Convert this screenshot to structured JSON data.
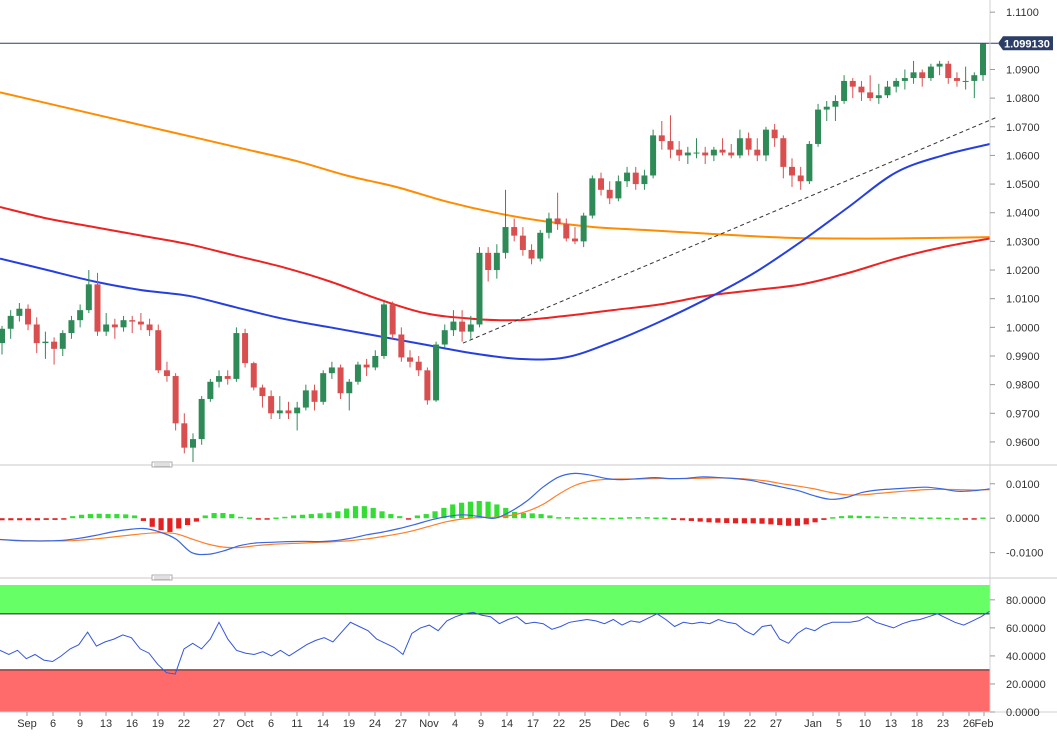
{
  "colors": {
    "bull": "#2e8b57",
    "bear": "#d94f4f",
    "sma_fast": "#2640e0",
    "sma_mid": "#ee2222",
    "sma_slow": "#ff8c00",
    "trendline": "#333333",
    "price_line": "#2c3e66",
    "macd": "#3a66e0",
    "signal": "#ff7f27",
    "hist_pos": "#33dd33",
    "hist_neg": "#e42020",
    "rsi_line": "#3355dd",
    "overbought": "#66ff66",
    "oversold": "#ff6b6b"
  },
  "chart_data": [
    {
      "type": "candlestick",
      "panel": "price",
      "title": "",
      "ylim": [
        0.953,
        1.1125
      ],
      "yticks": [
        "1.1100",
        "1.0900",
        "1.0800",
        "1.0700",
        "1.0600",
        "1.0500",
        "1.0400",
        "1.0300",
        "1.0200",
        "1.0100",
        "1.0000",
        "0.9900",
        "0.9800",
        "0.9700",
        "0.9600"
      ],
      "ytick_values": [
        1.11,
        1.09,
        1.08,
        1.07,
        1.06,
        1.05,
        1.04,
        1.03,
        1.02,
        1.01,
        1.0,
        0.99,
        0.98,
        0.97,
        0.96
      ],
      "last_price_label": "1.099130",
      "last_price": 1.09913,
      "xticks": [
        "Sep",
        "6",
        "9",
        "13",
        "16",
        "19",
        "22",
        "27",
        "Oct",
        "6",
        "11",
        "14",
        "19",
        "24",
        "27",
        "Nov",
        "4",
        "9",
        "14",
        "17",
        "22",
        "25",
        "Dec",
        "6",
        "9",
        "14",
        "19",
        "22",
        "27",
        "Jan",
        "5",
        "10",
        "13",
        "18",
        "23",
        "26",
        "Feb"
      ],
      "candles_ohlc": [
        [
          0.9945,
          1.0005,
          0.9905,
          0.9995
        ],
        [
          0.9995,
          1.006,
          0.996,
          1.004
        ],
        [
          1.004,
          1.0085,
          1.002,
          1.0065
        ],
        [
          1.0065,
          1.008,
          0.999,
          1.001
        ],
        [
          1.001,
          1.0035,
          0.991,
          0.9945
        ],
        [
          0.9945,
          0.9985,
          0.989,
          0.995
        ],
        [
          0.995,
          0.9965,
          0.987,
          0.9925
        ],
        [
          0.9925,
          0.999,
          0.99,
          0.998
        ],
        [
          0.998,
          1.004,
          0.996,
          1.0025
        ],
        [
          1.0025,
          1.008,
          1.0,
          1.006
        ],
        [
          1.006,
          1.02,
          1.005,
          1.015
        ],
        [
          1.015,
          1.019,
          0.997,
          0.9985
        ],
        [
          0.9985,
          1.005,
          0.997,
          1.001
        ],
        [
          1.001,
          1.003,
          0.996,
          1.0
        ],
        [
          1.0,
          1.004,
          0.9985,
          1.0025
        ],
        [
          1.0025,
          1.004,
          0.998,
          1.002
        ],
        [
          1.002,
          1.005,
          0.999,
          1.001
        ],
        [
          1.001,
          1.003,
          0.997,
          0.999
        ],
        [
          0.999,
          1.001,
          0.984,
          0.985
        ],
        [
          0.985,
          0.988,
          0.981,
          0.983
        ],
        [
          0.983,
          0.984,
          0.964,
          0.9665
        ],
        [
          0.9665,
          0.97,
          0.956,
          0.958
        ],
        [
          0.958,
          0.963,
          0.953,
          0.961
        ],
        [
          0.961,
          0.976,
          0.959,
          0.975
        ],
        [
          0.975,
          0.982,
          0.974,
          0.981
        ],
        [
          0.981,
          0.985,
          0.979,
          0.983
        ],
        [
          0.983,
          0.985,
          0.98,
          0.982
        ],
        [
          0.982,
          1.0,
          0.981,
          0.998
        ],
        [
          0.998,
          0.9995,
          0.986,
          0.9875
        ],
        [
          0.9875,
          0.988,
          0.978,
          0.979
        ],
        [
          0.979,
          0.98,
          0.972,
          0.976
        ],
        [
          0.976,
          0.978,
          0.968,
          0.97
        ],
        [
          0.97,
          0.976,
          0.968,
          0.971
        ],
        [
          0.971,
          0.974,
          0.968,
          0.97
        ],
        [
          0.97,
          0.974,
          0.964,
          0.972
        ],
        [
          0.972,
          0.98,
          0.971,
          0.978
        ],
        [
          0.978,
          0.98,
          0.971,
          0.974
        ],
        [
          0.974,
          0.985,
          0.973,
          0.984
        ],
        [
          0.984,
          0.988,
          0.982,
          0.986
        ],
        [
          0.986,
          0.987,
          0.975,
          0.977
        ],
        [
          0.977,
          0.982,
          0.971,
          0.981
        ],
        [
          0.981,
          0.988,
          0.98,
          0.987
        ],
        [
          0.987,
          0.989,
          0.983,
          0.986
        ],
        [
          0.986,
          0.992,
          0.985,
          0.99
        ],
        [
          0.99,
          1.009,
          0.989,
          1.008
        ],
        [
          1.008,
          1.009,
          0.996,
          0.9975
        ],
        [
          0.9975,
          1.0,
          0.988,
          0.9895
        ],
        [
          0.9895,
          0.992,
          0.986,
          0.988
        ],
        [
          0.988,
          0.99,
          0.983,
          0.985
        ],
        [
          0.985,
          0.986,
          0.973,
          0.9745
        ],
        [
          0.9745,
          0.995,
          0.974,
          0.994
        ],
        [
          0.994,
          1.001,
          0.993,
          0.999
        ],
        [
          0.999,
          1.006,
          0.997,
          1.002
        ],
        [
          1.002,
          1.006,
          0.995,
          0.9985
        ],
        [
          0.9985,
          1.004,
          0.996,
          1.001
        ],
        [
          1.001,
          1.028,
          1.0,
          1.026
        ],
        [
          1.026,
          1.028,
          1.016,
          1.02
        ],
        [
          1.02,
          1.029,
          1.017,
          1.026
        ],
        [
          1.026,
          1.048,
          1.024,
          1.035
        ],
        [
          1.035,
          1.038,
          1.03,
          1.032
        ],
        [
          1.032,
          1.035,
          1.025,
          1.027
        ],
        [
          1.027,
          1.029,
          1.022,
          1.024
        ],
        [
          1.024,
          1.034,
          1.023,
          1.033
        ],
        [
          1.033,
          1.04,
          1.031,
          1.038
        ],
        [
          1.038,
          1.047,
          1.034,
          1.036
        ],
        [
          1.036,
          1.038,
          1.03,
          1.031
        ],
        [
          1.031,
          1.035,
          1.029,
          1.03
        ],
        [
          1.03,
          1.04,
          1.028,
          1.039
        ],
        [
          1.039,
          1.053,
          1.038,
          1.052
        ],
        [
          1.052,
          1.054,
          1.046,
          1.048
        ],
        [
          1.048,
          1.051,
          1.043,
          1.045
        ],
        [
          1.045,
          1.053,
          1.044,
          1.051
        ],
        [
          1.051,
          1.056,
          1.049,
          1.054
        ],
        [
          1.054,
          1.056,
          1.048,
          1.05
        ],
        [
          1.05,
          1.055,
          1.048,
          1.053
        ],
        [
          1.053,
          1.069,
          1.052,
          1.067
        ],
        [
          1.067,
          1.072,
          1.062,
          1.065
        ],
        [
          1.065,
          1.074,
          1.059,
          1.062
        ],
        [
          1.062,
          1.065,
          1.058,
          1.06
        ],
        [
          1.06,
          1.063,
          1.057,
          1.061
        ],
        [
          1.061,
          1.066,
          1.059,
          1.061
        ],
        [
          1.061,
          1.063,
          1.057,
          1.06
        ],
        [
          1.06,
          1.063,
          1.058,
          1.062
        ],
        [
          1.062,
          1.066,
          1.06,
          1.061
        ],
        [
          1.061,
          1.064,
          1.059,
          1.06
        ],
        [
          1.06,
          1.069,
          1.059,
          1.066
        ],
        [
          1.066,
          1.068,
          1.06,
          1.062
        ],
        [
          1.062,
          1.066,
          1.058,
          1.06
        ],
        [
          1.06,
          1.07,
          1.058,
          1.069
        ],
        [
          1.069,
          1.071,
          1.063,
          1.066
        ],
        [
          1.066,
          1.067,
          1.052,
          1.056
        ],
        [
          1.056,
          1.059,
          1.049,
          1.053
        ],
        [
          1.053,
          1.056,
          1.048,
          1.051
        ],
        [
          1.051,
          1.065,
          1.05,
          1.064
        ],
        [
          1.064,
          1.078,
          1.063,
          1.076
        ],
        [
          1.076,
          1.079,
          1.072,
          1.077
        ],
        [
          1.077,
          1.081,
          1.072,
          1.079
        ],
        [
          1.079,
          1.088,
          1.078,
          1.086
        ],
        [
          1.086,
          1.087,
          1.08,
          1.084
        ],
        [
          1.084,
          1.086,
          1.079,
          1.082
        ],
        [
          1.082,
          1.088,
          1.079,
          1.08
        ],
        [
          1.08,
          1.085,
          1.078,
          1.081
        ],
        [
          1.081,
          1.086,
          1.08,
          1.084
        ],
        [
          1.084,
          1.087,
          1.082,
          1.086
        ],
        [
          1.086,
          1.09,
          1.083,
          1.087
        ],
        [
          1.087,
          1.093,
          1.085,
          1.089
        ],
        [
          1.089,
          1.09,
          1.084,
          1.087
        ],
        [
          1.087,
          1.092,
          1.086,
          1.091
        ],
        [
          1.091,
          1.093,
          1.088,
          1.092
        ],
        [
          1.092,
          1.093,
          1.085,
          1.087
        ],
        [
          1.087,
          1.089,
          1.084,
          1.086
        ],
        [
          1.086,
          1.091,
          1.083,
          1.086
        ],
        [
          1.086,
          1.089,
          1.08,
          1.088
        ],
        [
          1.088,
          1.099,
          1.086,
          1.099
        ]
      ],
      "sma_fast": [
        1.024,
        1.02,
        1.016,
        1.013,
        1.011,
        1.007,
        1.003,
        1.0,
        0.997,
        0.994,
        0.991,
        0.989,
        0.9895,
        0.995,
        1.002,
        1.01,
        1.019,
        1.03,
        1.042,
        1.054,
        1.06,
        1.064
      ],
      "sma_mid": [
        1.042,
        1.038,
        1.035,
        1.032,
        1.029,
        1.025,
        1.021,
        1.016,
        1.01,
        1.005,
        1.003,
        1.0025,
        1.004,
        1.006,
        1.008,
        1.011,
        1.013,
        1.015,
        1.019,
        1.024,
        1.028,
        1.031
      ],
      "sma_slow": [
        1.082,
        1.078,
        1.074,
        1.07,
        1.066,
        1.062,
        1.058,
        1.053,
        1.049,
        1.044,
        1.04,
        1.037,
        1.035,
        1.034,
        1.033,
        1.032,
        1.0312,
        1.031,
        1.031,
        1.0312,
        1.0315
      ],
      "trendline": [
        [
          0.9945,
          1.0735
        ]
      ]
    },
    {
      "type": "macd",
      "panel": "macd",
      "ylim": [
        -0.0165,
        0.014
      ],
      "yticks": [
        "0.0100",
        "0.0000",
        "-0.0100"
      ],
      "ytick_values": [
        0.01,
        0.0,
        -0.01
      ],
      "macd": [
        -0.0062,
        -0.0065,
        -0.0066,
        -0.0066,
        -0.0064,
        -0.0058,
        -0.005,
        -0.004,
        -0.0033,
        -0.003,
        -0.004,
        -0.006,
        -0.01,
        -0.0105,
        -0.0095,
        -0.008,
        -0.0072,
        -0.007,
        -0.0068,
        -0.0067,
        -0.0068,
        -0.0065,
        -0.0058,
        -0.0048,
        -0.004,
        -0.003,
        -0.0018,
        -0.0005,
        0.0005,
        0.001,
        0.0005,
        0.0,
        0.002,
        0.005,
        0.009,
        0.012,
        0.013,
        0.0125,
        0.0115,
        0.0112,
        0.0115,
        0.0118,
        0.0115,
        0.0116,
        0.012,
        0.0118,
        0.0115,
        0.011,
        0.01,
        0.009,
        0.008,
        0.0065,
        0.0055,
        0.006,
        0.0075,
        0.0082,
        0.0085,
        0.0088,
        0.009,
        0.0085,
        0.0078,
        0.008,
        0.0085
      ],
      "signal": [
        -0.0062,
        -0.0064,
        -0.0066,
        -0.0066,
        -0.0066,
        -0.0064,
        -0.006,
        -0.0055,
        -0.005,
        -0.0045,
        -0.0042,
        -0.0045,
        -0.006,
        -0.0075,
        -0.0084,
        -0.0085,
        -0.008,
        -0.0076,
        -0.0074,
        -0.0072,
        -0.007,
        -0.0068,
        -0.0065,
        -0.006,
        -0.0053,
        -0.0045,
        -0.0035,
        -0.0022,
        -0.001,
        -0.0002,
        0.0002,
        0.0003,
        0.0008,
        0.002,
        0.004,
        0.007,
        0.0095,
        0.0108,
        0.0113,
        0.0114,
        0.0114,
        0.0115,
        0.0115,
        0.0115,
        0.0116,
        0.0117,
        0.0116,
        0.0113,
        0.0108,
        0.01,
        0.0093,
        0.0085,
        0.0075,
        0.0068,
        0.0068,
        0.0072,
        0.0076,
        0.008,
        0.0083,
        0.0084,
        0.0083,
        0.0082,
        0.0083
      ],
      "histogram": [
        -0.0006,
        -0.0006,
        -0.0006,
        -0.0006,
        -0.0006,
        -0.0005,
        -0.0005,
        -0.0004,
        0.0006,
        0.001,
        0.0012,
        0.0013,
        0.0012,
        0.0012,
        0.0011,
        0.0008,
        -0.0008,
        -0.0025,
        -0.0035,
        -0.004,
        -0.003,
        -0.002,
        -0.001,
        0.0008,
        0.0015,
        0.0015,
        0.0012,
        0.0004,
        0.0002,
        -0.0003,
        -0.0002,
        0.0002,
        0.0004,
        0.0008,
        0.001,
        0.0012,
        0.0014,
        0.0016,
        0.002,
        0.0028,
        0.0035,
        0.0035,
        0.003,
        0.002,
        0.0012,
        0.0006,
        -0.0004,
        0.0008,
        0.0012,
        0.002,
        0.003,
        0.004,
        0.0045,
        0.0048,
        0.005,
        0.0048,
        0.004,
        0.003,
        0.0018,
        0.0015,
        0.0014,
        0.0012,
        0.0008,
        0.0003,
        0.0003,
        0.0002,
        0.0002,
        0.0002,
        0.0001,
        0.0001,
        0.0002,
        0.0003,
        0.0003,
        0.0003,
        0.0002,
        0.0002,
        -0.0005,
        -0.0006,
        -0.0008,
        -0.001,
        -0.0012,
        -0.0013,
        -0.0014,
        -0.0015,
        -0.0015,
        -0.0015,
        -0.0016,
        -0.0018,
        -0.002,
        -0.0022,
        -0.0022,
        -0.0018,
        -0.0012,
        -0.0005,
        0.0003,
        0.0006,
        0.0008,
        0.0007,
        0.0006,
        0.0005,
        0.0004,
        0.0003,
        0.0003,
        0.0002,
        0.0002,
        0.0002,
        0.0002,
        0.0001,
        0.0,
        -0.0002,
        -0.0003,
        0.0002
      ]
    },
    {
      "type": "line",
      "panel": "rsi",
      "ylim": [
        0,
        92
      ],
      "yticks": [
        "80.0000",
        "60.0000",
        "40.0000",
        "20.0000",
        "0.0000"
      ],
      "ytick_values": [
        80,
        60,
        40,
        20,
        0
      ],
      "overbought": 70,
      "oversold": 30,
      "values": [
        44,
        41,
        44,
        38,
        41,
        37,
        36,
        40,
        45,
        48,
        57,
        47,
        50,
        52,
        55,
        53,
        45,
        42,
        34,
        28,
        27,
        45,
        49,
        45,
        52,
        64,
        52,
        44,
        42,
        41,
        43,
        40,
        44,
        40,
        44,
        48,
        51,
        53,
        50,
        57,
        64,
        61,
        58,
        52,
        49,
        46,
        41,
        56,
        60,
        62,
        58,
        65,
        68,
        70,
        71,
        69,
        68,
        63,
        66,
        68,
        63,
        64,
        63,
        59,
        61,
        64,
        65,
        66,
        65,
        63,
        66,
        62,
        65,
        64,
        67,
        70,
        66,
        61,
        64,
        63,
        64,
        63,
        66,
        64,
        63,
        58,
        55,
        61,
        62,
        52,
        49,
        56,
        60,
        58,
        62,
        64,
        64,
        64,
        65,
        68,
        64,
        62,
        60,
        63,
        65,
        66,
        68,
        70,
        67,
        64,
        62,
        65,
        68,
        72
      ]
    }
  ]
}
